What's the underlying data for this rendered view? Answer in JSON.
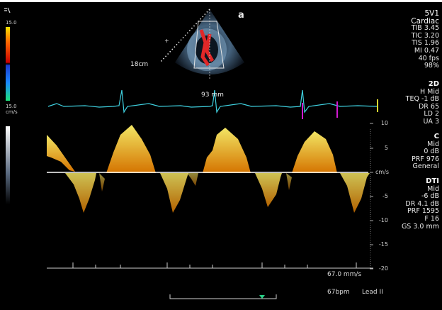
{
  "header": {
    "probe": "5V1",
    "preset": "Cardiac",
    "params": [
      "TIB 3.45",
      "TIC 3.20",
      "TIS 1.96",
      "MI 0.47",
      "40 fps",
      "98%"
    ]
  },
  "image_labels": {
    "depth": "18cm",
    "width": "93 mm",
    "orient_marker": "a"
  },
  "color_scale": {
    "top": "15.0",
    "bottom": "15.0",
    "unit": "cm/s"
  },
  "side_panel": {
    "mode_2d": {
      "title": "2D",
      "lines": [
        "H Mid",
        "TEQ -1 dB",
        "DR 65",
        "LD 2",
        "UA 3"
      ]
    },
    "mode_c": {
      "title": "C",
      "lines": [
        "Mid",
        "0 dB",
        "PRF 976",
        "General"
      ]
    },
    "mode_dti": {
      "title": "DTI",
      "lines": [
        "Mid",
        "-6 dB",
        "DR 4.1 dB",
        "PRF 1595",
        "F 16",
        "GS 3.0 mm"
      ]
    }
  },
  "velocity_axis": {
    "unit": "cm/s",
    "ticks": [
      "10",
      "5",
      "-5",
      "-10",
      "-15",
      "-20"
    ]
  },
  "footer": {
    "sweep_speed": "67.0 mm/s",
    "heart_rate": "67bpm",
    "lead": "Lead II"
  },
  "colors": {
    "ecg": "#3fd1e0",
    "doppler": "#ffd21a",
    "marker": "#d11ad1",
    "baseline": "#ffffff",
    "cursor": "#2ad48a"
  }
}
